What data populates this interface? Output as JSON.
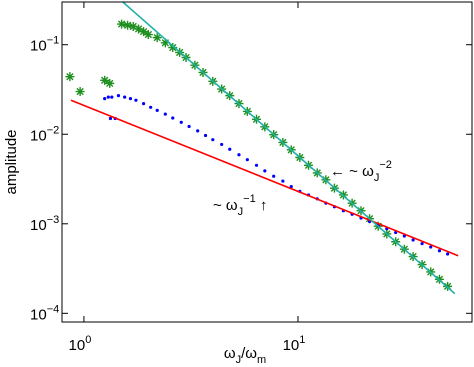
{
  "chart_data": {
    "type": "scatter",
    "xlabel": [
      "ω",
      "J",
      "/ω",
      "m"
    ],
    "ylabel": "amplitude",
    "xscale": "log",
    "yscale": "log",
    "xlim": [
      0.79,
      65
    ],
    "ylim": [
      8e-05,
      0.3
    ],
    "xticks": [
      {
        "value": 1,
        "label": "10",
        "exponent": "0"
      },
      {
        "value": 10,
        "label": "10",
        "exponent": "1"
      }
    ],
    "yticks": [
      {
        "value": 0.0001,
        "label": "10",
        "exponent": "−4"
      },
      {
        "value": 0.001,
        "label": "10",
        "exponent": "−3"
      },
      {
        "value": 0.01,
        "label": "10",
        "exponent": "−2"
      },
      {
        "value": 0.1,
        "label": "10",
        "exponent": "−1"
      }
    ],
    "annotations": [
      {
        "text": [
          "← ~ ω",
          "J",
          "−2"
        ]
      },
      {
        "text": [
          "~ ω",
          "J",
          "−1",
          " ↑"
        ]
      }
    ],
    "series": [
      {
        "marker": "asterisk",
        "color": "#1f8f1f",
        "x": [
          0.86,
          0.96,
          1.25,
          1.32,
          1.5,
          1.6,
          1.7,
          1.8,
          1.9,
          2.0,
          2.2,
          2.4,
          2.6,
          2.8,
          3.0,
          3.3,
          3.6,
          4.0,
          4.4,
          4.8,
          5.3,
          5.8,
          6.4,
          7.0,
          7.7,
          8.5,
          9.3,
          10.2,
          11.2,
          12.3,
          13.5,
          14.8,
          16.3,
          17.9,
          19.7,
          21.6,
          23.7,
          26,
          28.6,
          31.4,
          34.5,
          38,
          41.7,
          45.8,
          50
        ],
        "values": [
          0.044,
          0.03,
          0.04,
          0.037,
          0.17,
          0.165,
          0.16,
          0.15,
          0.14,
          0.13,
          0.12,
          0.105,
          0.093,
          0.082,
          0.072,
          0.059,
          0.049,
          0.039,
          0.032,
          0.027,
          0.022,
          0.018,
          0.0147,
          0.0121,
          0.0099,
          0.0081,
          0.0067,
          0.0055,
          0.0045,
          0.0037,
          0.0031,
          0.0025,
          0.0021,
          0.0017,
          0.0014,
          0.00114,
          0.00094,
          0.00077,
          0.00063,
          0.00052,
          0.00043,
          0.00035,
          0.00029,
          0.00024,
          0.0002
        ]
      },
      {
        "marker": "dot",
        "color": "#0000ff",
        "x": [
          1.25,
          1.3,
          1.33,
          1.35,
          1.4,
          1.45,
          1.55,
          1.65,
          1.75,
          1.9,
          2.05,
          2.2,
          2.4,
          2.6,
          2.85,
          3.1,
          3.4,
          3.7,
          4.0,
          4.4,
          4.8,
          5.3,
          5.8,
          6.4,
          7.0,
          7.7,
          8.5,
          9.3,
          10.2,
          11.2,
          12.3,
          13.5,
          14.8,
          16.3,
          17.9,
          19.7,
          21.6,
          23.7,
          26,
          28.6,
          31.4,
          34.5,
          38,
          41.7,
          45.8,
          50
        ],
        "values": [
          0.025,
          0.026,
          0.015,
          0.026,
          0.015,
          0.027,
          0.026,
          0.025,
          0.024,
          0.022,
          0.02,
          0.0185,
          0.0168,
          0.0152,
          0.0136,
          0.0122,
          0.0109,
          0.0097,
          0.0087,
          0.0077,
          0.0068,
          0.0059,
          0.0052,
          0.0045,
          0.0039,
          0.0034,
          0.003,
          0.0026,
          0.0023,
          0.0021,
          0.0019,
          0.0017,
          0.00155,
          0.0014,
          0.00128,
          0.00116,
          0.00106,
          0.00096,
          0.00088,
          0.0008,
          0.00073,
          0.00066,
          0.0006,
          0.00055,
          0.0005,
          0.00046
        ]
      },
      {
        "marker": "line",
        "color": "#ff0000",
        "x": [
          0.87,
          56
        ],
        "values": [
          0.024,
          0.00044
        ]
      },
      {
        "marker": "line",
        "color": "#20b2aa",
        "x": [
          1.52,
          54
        ],
        "values": [
          0.3,
          0.000166
        ]
      }
    ]
  }
}
